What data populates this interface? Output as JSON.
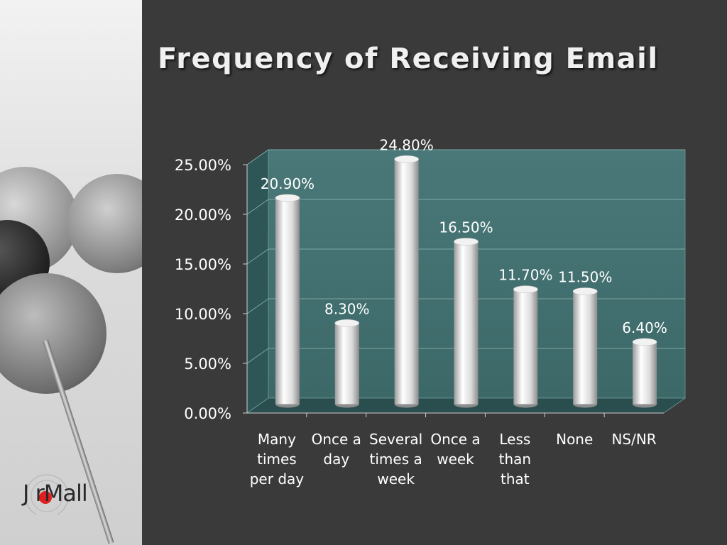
{
  "slide": {
    "title": "Frequency of Receiving Email",
    "logo_text": "J rMall"
  },
  "colors": {
    "background": "#3a3a3a",
    "plot_area": "#3e6b6b",
    "bar": "#e6e6e6",
    "text": "#ffffff",
    "logo_accent": "#e02020"
  },
  "chart_data": {
    "type": "bar",
    "title": "",
    "xlabel": "",
    "ylabel": "",
    "categories": [
      [
        "Many",
        "times",
        "per day"
      ],
      [
        "Once a",
        "day"
      ],
      [
        "Several",
        "times a",
        "week"
      ],
      [
        "Once a",
        "week"
      ],
      [
        "Less",
        "than",
        "that"
      ],
      [
        "None"
      ],
      [
        "NS/NR"
      ]
    ],
    "values": [
      20.9,
      8.3,
      24.8,
      16.5,
      11.7,
      11.5,
      6.4
    ],
    "data_labels": [
      "20.90%",
      "8.30%",
      "24.80%",
      "16.50%",
      "11.70%",
      "11.50%",
      "6.40%"
    ],
    "yticks": [
      "0.00%",
      "5.00%",
      "10.00%",
      "15.00%",
      "20.00%",
      "25.00%"
    ],
    "ylim": [
      0,
      25
    ],
    "grid": true,
    "legend": "none",
    "style": "3d-cylinder"
  }
}
